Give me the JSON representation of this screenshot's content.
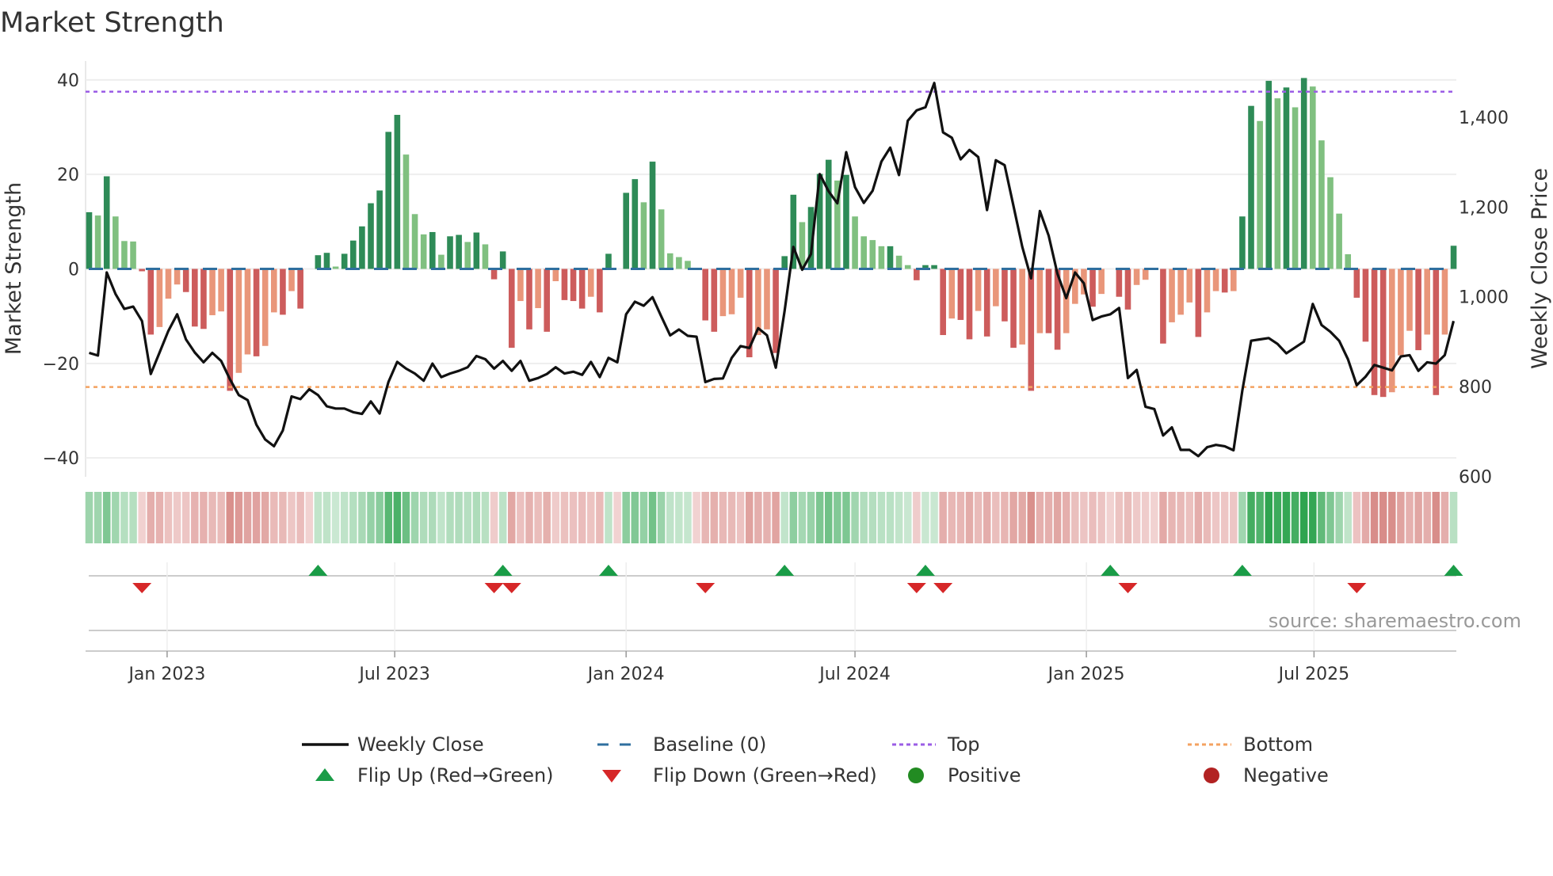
{
  "chart_data": {
    "type": "bar",
    "title": "Market Strength",
    "ylabel": "Market Strength",
    "y2label": "Weekly Close Price",
    "ylim": [
      -44,
      44
    ],
    "y2lim": [
      599,
      1525
    ],
    "yticks": [
      40,
      20,
      0,
      -20,
      -40
    ],
    "y2ticks": [
      1400,
      1200,
      1000,
      800,
      600
    ],
    "y2tick_labels": [
      "1,400",
      "1,200",
      "1,000",
      "800",
      "600"
    ],
    "x_start": "2022-10-31",
    "x_step_days": 7,
    "xticks": [
      {
        "date": "2023-01-01",
        "label": "Jan 2023"
      },
      {
        "date": "2023-07-01",
        "label": "Jul 2023"
      },
      {
        "date": "2024-01-01",
        "label": "Jan 2024"
      },
      {
        "date": "2024-07-01",
        "label": "Jul 2024"
      },
      {
        "date": "2025-01-01",
        "label": "Jan 2025"
      },
      {
        "date": "2025-07-01",
        "label": "Jul 2025"
      }
    ],
    "top_level": 37.5,
    "bottom_level": -25,
    "baseline": 0,
    "strength": [
      12.0,
      11.3,
      19.6,
      11.1,
      5.9,
      5.8,
      -0.5,
      -13.9,
      -12.3,
      -6.3,
      -3.3,
      -4.9,
      -12.2,
      -12.7,
      -9.8,
      -9.0,
      -25.8,
      -22.0,
      -18.1,
      -18.5,
      -16.3,
      -9.2,
      -9.7,
      -4.7,
      -8.4,
      0,
      2.9,
      3.4,
      0.5,
      3.2,
      6.0,
      9.0,
      13.9,
      16.6,
      29.0,
      32.6,
      24.2,
      11.6,
      7.3,
      7.8,
      3.0,
      6.9,
      7.2,
      5.7,
      7.7,
      5.2,
      -2.2,
      3.7,
      -16.7,
      -6.8,
      -12.8,
      -8.3,
      -13.3,
      -2.6,
      -6.6,
      -6.8,
      -8.4,
      -5.9,
      -9.2,
      3.2,
      0,
      16.1,
      19.0,
      14.1,
      22.7,
      12.6,
      3.3,
      2.5,
      1.7,
      0,
      -10.9,
      -13.3,
      -10.0,
      -9.6,
      -6.1,
      -18.7,
      -14.0,
      -12.8,
      -17.8,
      2.7,
      15.7,
      9.9,
      13.1,
      20.1,
      23.1,
      18.7,
      19.9,
      11.1,
      6.9,
      6.1,
      4.8,
      4.8,
      2.8,
      0.8,
      -2.4,
      0.8,
      0.8,
      -14.0,
      -10.5,
      -10.8,
      -14.9,
      -8.9,
      -14.3,
      -7.9,
      -11.1,
      -16.7,
      -16.0,
      -25.8,
      -13.6,
      -13.6,
      -17.1,
      -13.6,
      -7.4,
      -5.4,
      -8.0,
      -5.3,
      0,
      -5.9,
      -8.6,
      -3.4,
      -2.3,
      0,
      -15.8,
      -11.3,
      -9.7,
      -7.1,
      -14.4,
      -9.2,
      -4.7,
      -5.0,
      -4.7,
      11.1,
      34.5,
      31.3,
      39.8,
      36.1,
      38.4,
      34.2,
      40.4,
      38.6,
      27.2,
      19.4,
      11.7,
      3.1,
      -6.1,
      -15.4,
      -26.7,
      -27.1,
      -26.1,
      -18.3,
      -13.1,
      -17.2,
      -13.9,
      -26.7,
      -13.9,
      4.9
    ],
    "weekly_close": [
      875,
      869,
      1054,
      1006,
      973,
      978,
      946,
      828,
      876,
      924,
      961,
      905,
      876,
      854,
      875,
      857,
      816,
      781,
      770,
      715,
      682,
      667,
      702,
      778,
      772,
      794,
      781,
      756,
      751,
      751,
      743,
      739,
      767,
      740,
      810,
      855,
      840,
      829,
      813,
      851,
      821,
      829,
      835,
      843,
      868,
      861,
      840,
      857,
      835,
      857,
      813,
      819,
      828,
      843,
      829,
      833,
      826,
      855,
      821,
      864,
      854,
      961,
      989,
      980,
      999,
      956,
      914,
      927,
      913,
      911,
      810,
      817,
      818,
      864,
      890,
      886,
      930,
      914,
      842,
      968,
      1111,
      1060,
      1095,
      1273,
      1235,
      1208,
      1322,
      1244,
      1209,
      1236,
      1301,
      1332,
      1271,
      1392,
      1415,
      1422,
      1476,
      1366,
      1354,
      1306,
      1327,
      1311,
      1193,
      1304,
      1293,
      1203,
      1111,
      1041,
      1191,
      1136,
      1051,
      997,
      1054,
      1030,
      948,
      956,
      961,
      975,
      819,
      837,
      755,
      750,
      691,
      709,
      659,
      659,
      645,
      665,
      670,
      667,
      658,
      791,
      902,
      905,
      908,
      895,
      874,
      887,
      900,
      984,
      937,
      922,
      902,
      861,
      803,
      822,
      848,
      842,
      836,
      867,
      870,
      835,
      854,
      851,
      870,
      946
    ],
    "flip_up_weeks": [
      26,
      47,
      59,
      79,
      95,
      116,
      131,
      155
    ],
    "flip_down_weeks": [
      6,
      46,
      48,
      70,
      94,
      97,
      118,
      144
    ],
    "legend": [
      {
        "label": "Weekly Close",
        "kind": "line"
      },
      {
        "label": "Baseline (0)",
        "kind": "dashed"
      },
      {
        "label": "Top",
        "kind": "dotted"
      },
      {
        "label": "Bottom",
        "kind": "dotted"
      },
      {
        "label": "Flip Up (Red→Green)",
        "kind": "triangle-up"
      },
      {
        "label": "Flip Down (Green→Red)",
        "kind": "triangle-down"
      },
      {
        "label": "Positive",
        "kind": "circle"
      },
      {
        "label": "Negative",
        "kind": "circle"
      }
    ],
    "legend_position": "bottom",
    "source": "source: sharemaestro.com",
    "colors": {
      "pos_rising": "#2e8b57",
      "pos_falling": "#80c080",
      "neg_falling": "#cd5c5c",
      "neg_rising": "#e9967a",
      "close": "#111111",
      "baseline": "#2f6f9f",
      "top": "#9b5de5",
      "bottom": "#f4a261",
      "flip_up": "#1a9c47",
      "flip_down": "#d62728",
      "positive": "#228b22",
      "negative": "#b22222"
    }
  }
}
